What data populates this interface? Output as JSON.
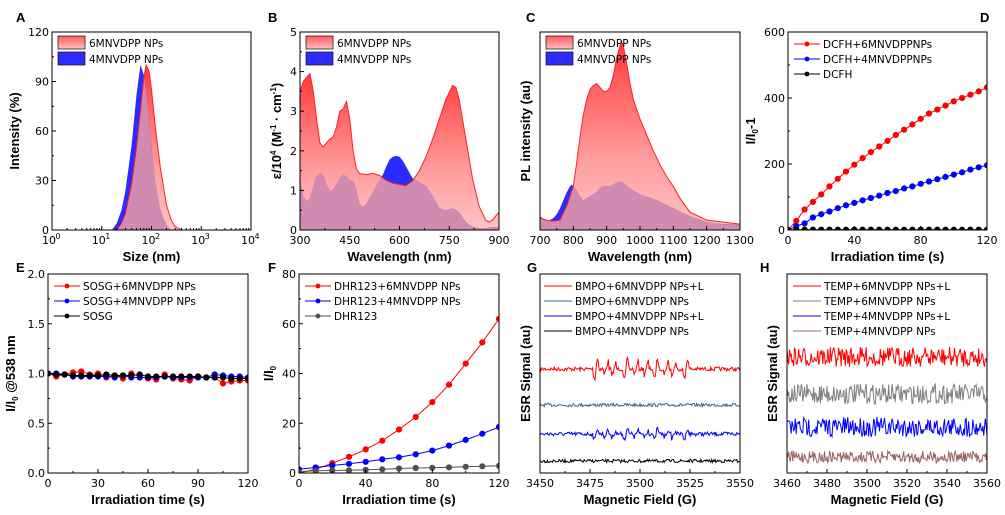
{
  "chart_data": [
    {
      "panel": "A",
      "type": "area",
      "xlabel": "Size (nm)",
      "ylabel": "Intensity (%)",
      "xscale": "log",
      "xlim": [
        1,
        10000
      ],
      "ylim": [
        0,
        120
      ],
      "xticks": [
        "10",
        "10",
        "10",
        "10",
        "10"
      ],
      "xtick_exp": [
        "0",
        "1",
        "2",
        "3",
        "4"
      ],
      "yticks": [
        "0",
        "30",
        "60",
        "90",
        "120"
      ],
      "legend": "top-left",
      "series": [
        {
          "name": "6MNVDPP NPs",
          "peak": 78,
          "peak_value": 100,
          "color": "#ff5a5a",
          "x": [
            20,
            25,
            30,
            40,
            50,
            60,
            70,
            78,
            90,
            100,
            120,
            150,
            200,
            250,
            300,
            400
          ],
          "y": [
            0,
            4,
            10,
            28,
            50,
            72,
            92,
            100,
            96,
            85,
            62,
            38,
            15,
            6,
            2,
            0
          ]
        },
        {
          "name": "4MNVDPP NPs",
          "peak": 60,
          "peak_value": 100,
          "color": "#2828ff",
          "x": [
            16,
            20,
            25,
            30,
            40,
            50,
            60,
            70,
            80,
            100,
            120,
            150,
            200,
            250
          ],
          "y": [
            0,
            4,
            12,
            24,
            52,
            82,
            100,
            94,
            80,
            50,
            28,
            12,
            3,
            0
          ]
        }
      ]
    },
    {
      "panel": "B",
      "type": "area",
      "xlabel": "Wavelength (nm)",
      "ylabel": "ε/10⁴ (M⁻¹ · cm⁻¹)",
      "ylabel_parts": {
        "pre": "ε/10",
        "sup1": "4",
        "mid": " (M",
        "sup2": "-1",
        "mid2": " · cm",
        "sup3": "-1",
        "post": ")"
      },
      "xlim": [
        300,
        900
      ],
      "ylim": [
        0,
        5
      ],
      "xticks": [
        "300",
        "450",
        "600",
        "750",
        "900"
      ],
      "yticks": [
        "0",
        "1",
        "2",
        "3",
        "4",
        "5"
      ],
      "legend": "top-left",
      "series": [
        {
          "name": "6MNVDPP NPs",
          "color": "#ff5a5a",
          "x": [
            300,
            310,
            320,
            330,
            340,
            350,
            360,
            370,
            380,
            390,
            400,
            410,
            420,
            430,
            440,
            450,
            460,
            470,
            480,
            500,
            520,
            540,
            560,
            580,
            600,
            620,
            640,
            660,
            680,
            700,
            720,
            740,
            760,
            770,
            780,
            800,
            820,
            840,
            860,
            870,
            880,
            890,
            900
          ],
          "y": [
            3.5,
            3.75,
            3.85,
            3.95,
            3.5,
            2.8,
            2.2,
            2.1,
            2.2,
            2.3,
            2.35,
            2.6,
            3.0,
            3.05,
            3.25,
            2.8,
            2.0,
            1.55,
            1.42,
            1.4,
            1.43,
            1.38,
            1.25,
            1.18,
            1.15,
            1.12,
            1.25,
            1.5,
            1.85,
            2.3,
            2.8,
            3.3,
            3.65,
            3.6,
            3.3,
            2.3,
            1.3,
            0.6,
            0.25,
            0.2,
            0.25,
            0.35,
            0.45
          ]
        },
        {
          "name": "4MNVDPP NPs",
          "color": "#2828ff",
          "x": [
            300,
            310,
            320,
            330,
            340,
            350,
            360,
            370,
            380,
            390,
            400,
            410,
            420,
            430,
            440,
            450,
            460,
            470,
            480,
            490,
            500,
            520,
            540,
            550,
            560,
            570,
            580,
            590,
            600,
            610,
            620,
            630,
            640,
            660,
            680,
            700,
            720,
            740,
            760,
            780,
            800,
            820,
            840,
            860,
            880,
            900
          ],
          "y": [
            1.3,
            0.85,
            0.72,
            0.8,
            1.1,
            1.35,
            1.43,
            1.38,
            1.15,
            0.98,
            1.02,
            1.15,
            1.3,
            1.4,
            1.35,
            1.25,
            1.25,
            1.0,
            0.65,
            0.58,
            0.65,
            0.95,
            1.25,
            1.4,
            1.6,
            1.78,
            1.85,
            1.87,
            1.85,
            1.75,
            1.6,
            1.45,
            1.3,
            1.2,
            1.1,
            0.85,
            0.55,
            0.5,
            0.55,
            0.45,
            0.2,
            0.08,
            0.05,
            0.05,
            0.07,
            0.08
          ]
        }
      ]
    },
    {
      "panel": "C",
      "type": "area",
      "xlabel": "Wavelength (nm)",
      "ylabel": "PL intensity (au)",
      "xlim": [
        700,
        1300
      ],
      "ylim": [
        0,
        1
      ],
      "xticks": [
        "700",
        "800",
        "900",
        "1000",
        "1100",
        "1200",
        "1300"
      ],
      "legend": "top-left",
      "series": [
        {
          "name": "6MNVDPP NPs",
          "color": "#ff5a5a",
          "x": [
            700,
            720,
            740,
            760,
            780,
            800,
            810,
            820,
            830,
            840,
            850,
            860,
            870,
            880,
            890,
            900,
            910,
            920,
            930,
            940,
            945,
            950,
            960,
            970,
            980,
            1000,
            1020,
            1040,
            1060,
            1080,
            1100,
            1120,
            1150,
            1200,
            1250,
            1300
          ],
          "y": [
            0.06,
            0.05,
            0.045,
            0.05,
            0.12,
            0.22,
            0.34,
            0.47,
            0.58,
            0.66,
            0.71,
            0.73,
            0.74,
            0.72,
            0.7,
            0.7,
            0.72,
            0.78,
            0.87,
            0.93,
            0.95,
            0.93,
            0.84,
            0.74,
            0.66,
            0.56,
            0.48,
            0.4,
            0.33,
            0.27,
            0.22,
            0.16,
            0.09,
            0.05,
            0.04,
            0.03
          ]
        },
        {
          "name": "4MNVDPP NPs",
          "color": "#2828ff",
          "x": [
            700,
            710,
            720,
            730,
            740,
            750,
            760,
            770,
            780,
            790,
            795,
            800,
            810,
            820,
            830,
            840,
            850,
            860,
            870,
            880,
            890,
            900,
            910,
            920,
            930,
            940,
            950,
            960,
            980,
            1000,
            1050,
            1100,
            1150,
            1200,
            1250,
            1300
          ],
          "y": [
            0.07,
            0.055,
            0.05,
            0.05,
            0.06,
            0.08,
            0.11,
            0.15,
            0.19,
            0.22,
            0.23,
            0.22,
            0.2,
            0.17,
            0.15,
            0.16,
            0.17,
            0.18,
            0.19,
            0.21,
            0.22,
            0.22,
            0.22,
            0.23,
            0.24,
            0.245,
            0.24,
            0.22,
            0.2,
            0.18,
            0.15,
            0.11,
            0.07,
            0.04,
            0.03,
            0.03
          ]
        }
      ]
    },
    {
      "panel": "D",
      "type": "line",
      "xlabel": "Irradiation time (s)",
      "ylabel": "I/I₀-1",
      "ylabel_parts": {
        "pre": "I/I",
        "sub": "0",
        "post": "-1"
      },
      "xlim": [
        0,
        120
      ],
      "ylim": [
        0,
        600
      ],
      "xticks": [
        "0",
        "40",
        "80",
        "120"
      ],
      "yticks": [
        "0",
        "200",
        "400",
        "600"
      ],
      "legend": "top-left",
      "x": [
        0,
        5,
        10,
        15,
        20,
        25,
        30,
        35,
        40,
        45,
        50,
        55,
        60,
        65,
        70,
        75,
        80,
        85,
        90,
        95,
        100,
        105,
        110,
        115,
        120
      ],
      "series": [
        {
          "name": "DCFH+6MNVDPPNPs",
          "color": "#ff0000",
          "values": [
            0,
            28,
            62,
            85,
            108,
            132,
            155,
            177,
            198,
            218,
            236,
            253,
            270,
            288,
            304,
            320,
            337,
            353,
            365,
            377,
            390,
            400,
            410,
            420,
            432
          ]
        },
        {
          "name": "DCFH+4MNVDPPNPs",
          "color": "#0000ff",
          "values": [
            0,
            12,
            20,
            38,
            48,
            56,
            66,
            75,
            82,
            90,
            97,
            104,
            112,
            118,
            126,
            132,
            140,
            147,
            154,
            161,
            168,
            175,
            183,
            190,
            196
          ]
        },
        {
          "name": "DCFH",
          "color": "#000000",
          "values": [
            0,
            1,
            1,
            1,
            1,
            1,
            1,
            1,
            1,
            1,
            1,
            1,
            1,
            1,
            1,
            1,
            1,
            1,
            1,
            1,
            1,
            1,
            1,
            1,
            1
          ]
        }
      ]
    },
    {
      "panel": "E",
      "type": "line",
      "xlabel": "Irradiation time (s)",
      "ylabel": "I/I₀ @538 nm",
      "ylabel_parts": {
        "pre": "I/I",
        "sub": "0",
        "post": " @538 nm"
      },
      "xlim": [
        0,
        120
      ],
      "ylim": [
        0,
        2.0
      ],
      "xticks": [
        "0",
        "30",
        "60",
        "90",
        "120"
      ],
      "yticks": [
        "0.0",
        "0.5",
        "1.0",
        "1.5",
        "2.0"
      ],
      "legend": "top-left",
      "x": [
        0,
        5,
        10,
        15,
        20,
        25,
        30,
        35,
        40,
        45,
        50,
        55,
        60,
        65,
        70,
        75,
        80,
        85,
        90,
        95,
        100,
        105,
        110,
        115,
        120
      ],
      "series": [
        {
          "name": "SOSG+6MNVDPP NPs",
          "color": "#ff0000",
          "values": [
            1.0,
            0.97,
            0.99,
            1.01,
            1.02,
            0.99,
            1.0,
            0.96,
            0.98,
            0.95,
            1.0,
            0.97,
            0.95,
            0.94,
            0.99,
            0.95,
            0.94,
            0.93,
            0.97,
            0.96,
            0.96,
            0.9,
            0.92,
            0.93,
            0.93
          ]
        },
        {
          "name": "SOSG+4MNVDPP NPs",
          "color": "#0000ff",
          "values": [
            1.0,
            1.0,
            0.99,
            0.97,
            0.97,
            0.97,
            0.97,
            0.97,
            0.96,
            0.98,
            0.96,
            0.96,
            0.96,
            0.96,
            0.97,
            0.96,
            0.96,
            0.96,
            0.96,
            0.96,
            0.99,
            0.98,
            0.97,
            0.97,
            0.96
          ]
        },
        {
          "name": "SOSG",
          "color": "#000000",
          "values": [
            1.0,
            0.99,
            0.99,
            0.98,
            0.98,
            0.98,
            0.98,
            0.99,
            0.98,
            0.98,
            0.98,
            0.99,
            0.97,
            0.97,
            0.97,
            0.97,
            0.97,
            0.97,
            0.97,
            0.96,
            0.96,
            0.96,
            0.95,
            0.95,
            0.95
          ]
        }
      ]
    },
    {
      "panel": "F",
      "type": "line",
      "xlabel": "Irradiation time (s)",
      "ylabel": "I/I₀",
      "ylabel_parts": {
        "pre": "I/I",
        "sub": "0",
        "post": ""
      },
      "xlim": [
        0,
        120
      ],
      "ylim": [
        0,
        80
      ],
      "xticks": [
        "0",
        "40",
        "80",
        "120"
      ],
      "yticks": [
        "0",
        "20",
        "40",
        "60",
        "80"
      ],
      "legend": "top-left",
      "x": [
        0,
        10,
        20,
        30,
        40,
        50,
        60,
        70,
        80,
        90,
        100,
        110,
        120
      ],
      "series": [
        {
          "name": "DHR123+6MNVDPP NPs",
          "color": "#ff0000",
          "values": [
            0,
            1.5,
            4,
            6.5,
            9.5,
            13,
            17.5,
            22.5,
            28.5,
            35.5,
            44,
            52.5,
            62
          ]
        },
        {
          "name": "DHR123+4MNVDPP NPs",
          "color": "#0000ff",
          "values": [
            1.5,
            2.2,
            3,
            3.7,
            4.5,
            5.5,
            6.3,
            7.5,
            9,
            11,
            13.3,
            15.8,
            18.5
          ]
        },
        {
          "name": "DHR123",
          "color": "#505050",
          "values": [
            0.5,
            0.9,
            1.0,
            1.1,
            1.3,
            1.5,
            1.8,
            2.0,
            2.1,
            2.3,
            2.5,
            2.7,
            2.9
          ]
        }
      ]
    },
    {
      "panel": "G",
      "type": "line",
      "xlabel": "Magnetic Field (G)",
      "ylabel": "ESR Signal (au)",
      "xlim": [
        3450,
        3550
      ],
      "xticks": [
        "3450",
        "3475",
        "3500",
        "3525",
        "3550"
      ],
      "legend": "top",
      "series": [
        {
          "name": "BMPO+6MNVDPP NPs+L",
          "color": "#ff0000",
          "peaks": [
            3478,
            3493,
            3508,
            3523
          ],
          "amplitude": 1.0
        },
        {
          "name": "BMPO+6MNVDPP NPs",
          "color": "#3a6a8c",
          "peaks": [],
          "amplitude": 0.08
        },
        {
          "name": "BMPO+4MNVDPP NPs+L",
          "color": "#0000ff",
          "peaks": [
            3478,
            3493,
            3508,
            3523
          ],
          "amplitude": 0.55
        },
        {
          "name": "BMPO+4MNVDPP NPs",
          "color": "#000000",
          "peaks": [],
          "amplitude": 0.08
        }
      ]
    },
    {
      "panel": "H",
      "type": "line",
      "xlabel": "Magnetic Field (G)",
      "ylabel": "ESR Signal (au)",
      "xlim": [
        3460,
        3560
      ],
      "xticks": [
        "3460",
        "3480",
        "3500",
        "3520",
        "3540",
        "3560"
      ],
      "legend": "top",
      "series": [
        {
          "name": "TEMP+6MNVDPP NPs+L",
          "color": "#ff0000",
          "noise": 0.3
        },
        {
          "name": "TEMP+6MNVDPP NPs",
          "color": "#808080",
          "noise": 0.3
        },
        {
          "name": "TEMP+4MNVDPP NPs+L",
          "color": "#0000ff",
          "noise": 0.3
        },
        {
          "name": "TEMP+4MNVDPP NPs",
          "color": "#9a6464",
          "noise": 0.2
        }
      ]
    }
  ]
}
